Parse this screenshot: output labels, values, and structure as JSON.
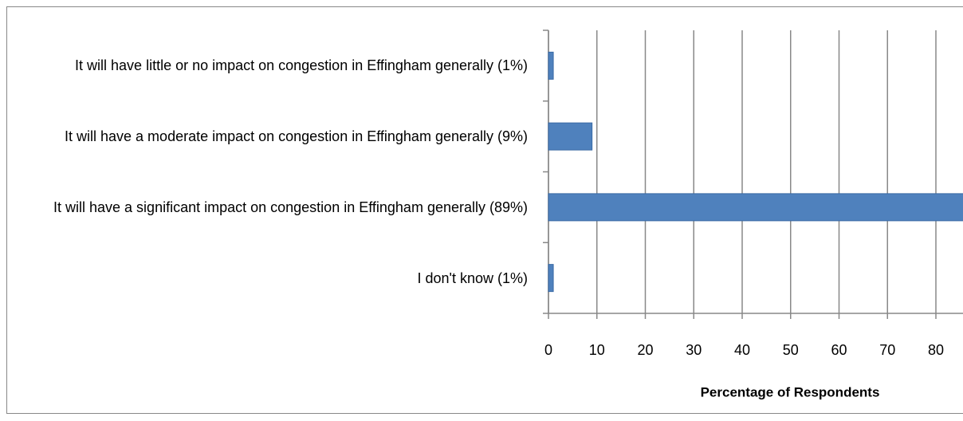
{
  "chart_data": {
    "type": "bar",
    "orientation": "horizontal",
    "categories": [
      "It will have little or no impact on congestion in Effingham generally (1%)",
      "It will have a moderate impact on congestion in Effingham generally (9%)",
      "It will have a significant impact on congestion in Effingham generally (89%)",
      "I don't know (1%)"
    ],
    "values": [
      1,
      9,
      89,
      1
    ],
    "color": "#4f81bd",
    "xlabel": "Percentage of Respondents",
    "xlim": [
      0,
      100
    ],
    "xticks": [
      0,
      10,
      20,
      30,
      40,
      50,
      60,
      70,
      80
    ],
    "grid": true
  }
}
